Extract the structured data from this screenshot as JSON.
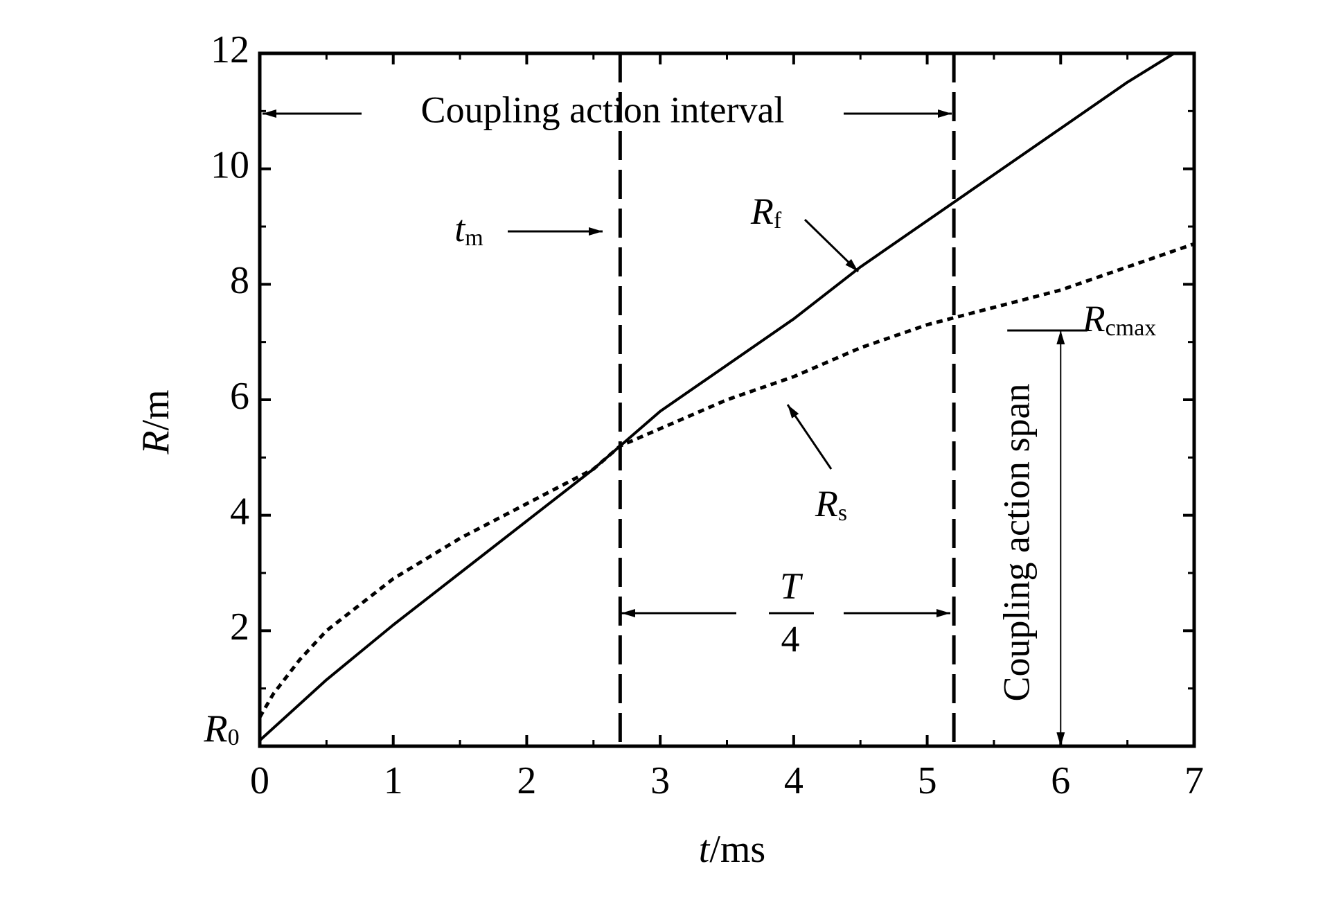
{
  "chart_data": {
    "type": "line",
    "xlabel": [
      "t",
      "/ms"
    ],
    "ylabel": [
      "R",
      "/m"
    ],
    "xlim": [
      0,
      7
    ],
    "ylim": [
      0,
      12
    ],
    "xticks": [
      0,
      1,
      2,
      3,
      4,
      5,
      6,
      7
    ],
    "yticks": [
      2,
      4,
      6,
      8,
      10,
      12
    ],
    "xminor": [
      0.5,
      1.5,
      2.5,
      3.5,
      4.5,
      5.5,
      6.5
    ],
    "yminor": [
      1,
      3,
      5,
      7,
      9,
      11
    ],
    "series": [
      {
        "name": "Rf",
        "color": "#000000",
        "style": "solid",
        "x": [
          0,
          0.5,
          1,
          1.5,
          2,
          2.5,
          2.7,
          3,
          3.5,
          4,
          4.5,
          5,
          5.5,
          6,
          6.5,
          6.85
        ],
        "values": [
          0.1,
          1.15,
          2.1,
          3.0,
          3.9,
          4.8,
          5.2,
          5.8,
          6.6,
          7.4,
          8.3,
          9.1,
          9.9,
          10.7,
          11.5,
          12
        ]
      },
      {
        "name": "Rs",
        "color": "#000000",
        "style": "dotted",
        "x": [
          0,
          0.1,
          0.3,
          0.5,
          1,
          1.5,
          2,
          2.5,
          2.7,
          3,
          3.5,
          4,
          4.5,
          5,
          5.5,
          6,
          6.5,
          7
        ],
        "values": [
          0.5,
          0.9,
          1.5,
          2.0,
          2.9,
          3.6,
          4.2,
          4.8,
          5.2,
          5.5,
          6.0,
          6.4,
          6.9,
          7.3,
          7.6,
          7.9,
          8.3,
          8.7
        ]
      }
    ],
    "vlines": [
      2.7,
      5.2
    ],
    "span": {
      "x": 6,
      "from": 0,
      "to": 7.2,
      "bar_from": 5.6,
      "bar_to": 6.2
    },
    "annotations": {
      "interval": "Coupling action interval",
      "tm": [
        "t",
        "m"
      ],
      "rf": [
        "R",
        "f"
      ],
      "rs": [
        "R",
        "s"
      ],
      "rcmax": [
        "R",
        "cmax"
      ],
      "r0": [
        "R",
        "0"
      ],
      "period_num": "T",
      "period_den": "4",
      "span_label": "Coupling action span"
    }
  }
}
